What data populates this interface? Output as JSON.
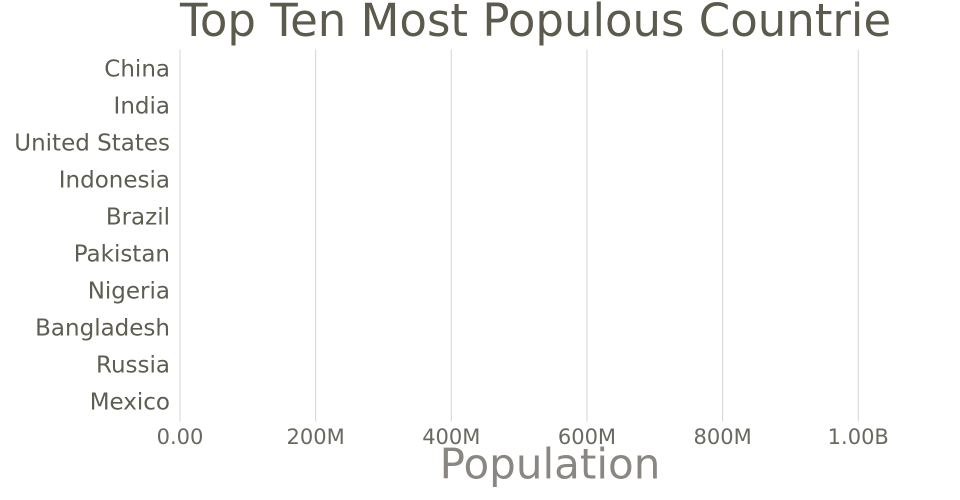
{
  "chart_data": {
    "type": "bar",
    "orientation": "horizontal",
    "title": "Top Ten Most Populous Countrie",
    "x_label": "Population",
    "categories": [
      "China",
      "India",
      "United States",
      "Indonesia",
      "Brazil",
      "Pakistan",
      "Nigeria",
      "Bangladesh",
      "Russia",
      "Mexico"
    ],
    "xlim": [
      0,
      1150000000
    ],
    "xticks": [
      {
        "value": 0,
        "label": "0.00"
      },
      {
        "value": 200000000,
        "label": "200M"
      },
      {
        "value": 400000000,
        "label": "400M"
      },
      {
        "value": 600000000,
        "label": "600M"
      },
      {
        "value": 800000000,
        "label": "800M"
      },
      {
        "value": 1000000000,
        "label": "1.00B"
      }
    ],
    "grid": true
  }
}
